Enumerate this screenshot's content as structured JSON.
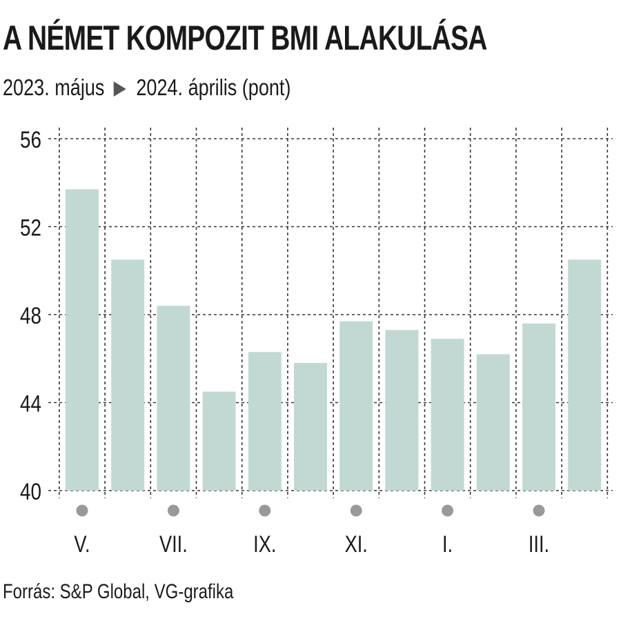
{
  "header": {
    "title": "A NÉMET KOMPOZIT BMI ALAKULÁSA",
    "subtitle_start": "2023. május",
    "subtitle_end": "2024. április (pont)"
  },
  "footer": {
    "source": "Forrás: S&P Global, VG-grafika"
  },
  "colors": {
    "bar": "#c1d9d2",
    "grid": "#333333",
    "dot": "#999999",
    "text": "#1a1a1a"
  },
  "chart_data": {
    "type": "bar",
    "title": "A NÉMET KOMPOZIT BMI ALAKULÁSA",
    "subtitle": "2023. május ▶ 2024. április (pont)",
    "categories": [
      "V.",
      "",
      "VII.",
      "",
      "IX.",
      "",
      "XI.",
      "",
      "I.",
      "",
      "III.",
      ""
    ],
    "labeled_categories": [
      "V.",
      "VII.",
      "IX.",
      "XI.",
      "I.",
      "III."
    ],
    "values": [
      53.7,
      50.5,
      48.4,
      44.5,
      46.3,
      45.8,
      47.7,
      47.3,
      46.9,
      46.2,
      47.6,
      50.5
    ],
    "ylim": [
      40,
      56
    ],
    "yticks": [
      40,
      44,
      48,
      52,
      56
    ],
    "ytick_labels": [
      "40",
      "44",
      "48",
      "52",
      "56"
    ],
    "grid": true,
    "grid_style": "dashed",
    "xlabel": "",
    "ylabel": ""
  }
}
